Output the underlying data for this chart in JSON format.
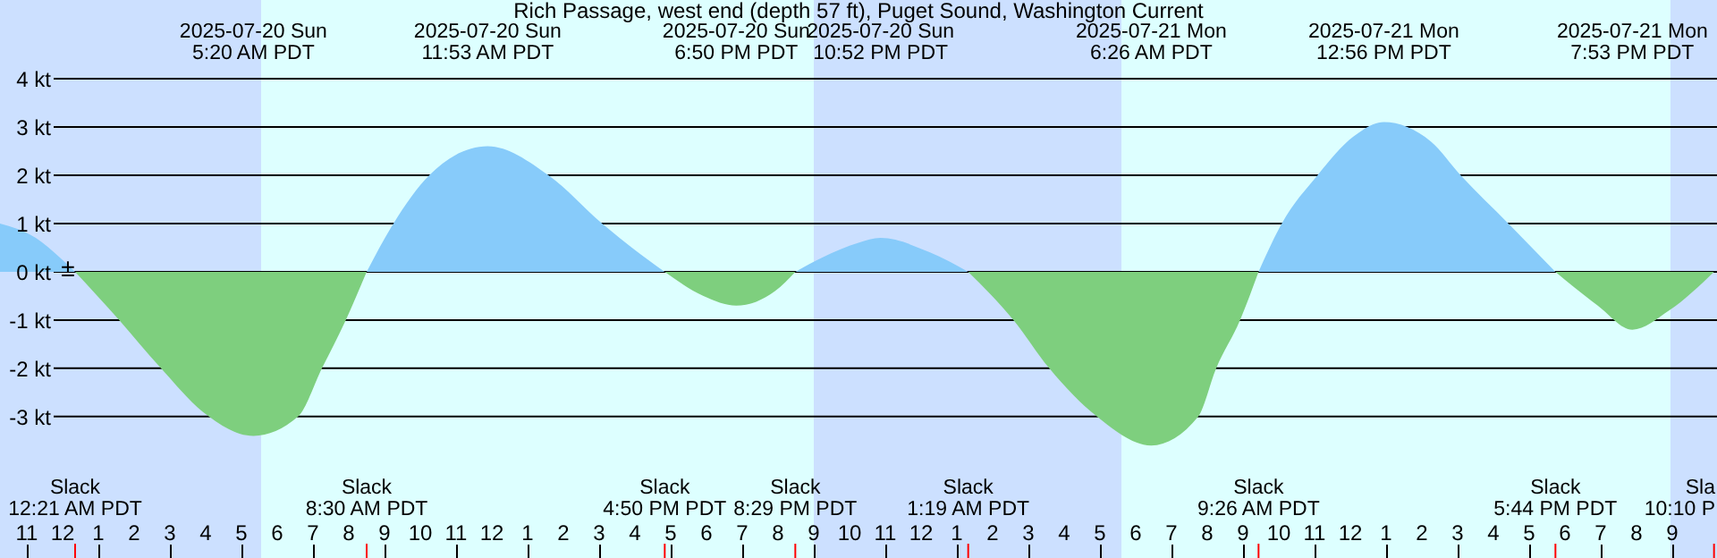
{
  "chart_data": {
    "type": "area",
    "title": "Rich Passage, west end (depth 57 ft), Puget Sound, Washington Current",
    "x": [
      "2025-07-19T22:15",
      "2025-07-19T23:15",
      "2025-07-19T23:55",
      "2025-07-20T00:21",
      "2025-07-20T01:35",
      "2025-07-20T02:45",
      "2025-07-20T03:55",
      "2025-07-20T05:20",
      "2025-07-20T06:35",
      "2025-07-20T07:15",
      "2025-07-20T07:55",
      "2025-07-20T08:30",
      "2025-07-20T09:15",
      "2025-07-20T10:15",
      "2025-07-20T11:53",
      "2025-07-20T13:35",
      "2025-07-20T15:05",
      "2025-07-20T15:55",
      "2025-07-20T16:50",
      "2025-07-20T17:55",
      "2025-07-20T18:50",
      "2025-07-20T19:55",
      "2025-07-20T20:29",
      "2025-07-20T21:15",
      "2025-07-20T22:15",
      "2025-07-20T22:52",
      "2025-07-21T00:15",
      "2025-07-21T01:19",
      "2025-07-21T02:35",
      "2025-07-21T03:35",
      "2025-07-21T04:55",
      "2025-07-21T06:26",
      "2025-07-21T07:45",
      "2025-07-21T08:15",
      "2025-07-21T08:55",
      "2025-07-21T09:26",
      "2025-07-21T10:05",
      "2025-07-21T11:05",
      "2025-07-21T12:05",
      "2025-07-21T12:56",
      "2025-07-21T14:15",
      "2025-07-21T15:05",
      "2025-07-21T16:25",
      "2025-07-21T17:44",
      "2025-07-21T18:55",
      "2025-07-21T19:53",
      "2025-07-21T20:55",
      "2025-07-21T22:10"
    ],
    "series": [
      {
        "color": "#87cbfa",
        "values": [
          1.0,
          0.7,
          0.3,
          0,
          null,
          null,
          null,
          null,
          null,
          null,
          null,
          0,
          1.0,
          2.0,
          2.6,
          2.0,
          1.0,
          0.5,
          0,
          null,
          null,
          null,
          0,
          0.3,
          0.6,
          0.7,
          0.4,
          0,
          null,
          null,
          null,
          null,
          null,
          null,
          null,
          0,
          1.0,
          2.0,
          2.8,
          3.1,
          2.7,
          2.0,
          1.0,
          0,
          null,
          null,
          null,
          null
        ]
      },
      {
        "color": "#7ecf7e",
        "values": [
          null,
          null,
          null,
          0,
          -1.0,
          -2.0,
          -2.9,
          -3.4,
          -3.0,
          -2.0,
          -1.0,
          0,
          null,
          null,
          null,
          null,
          null,
          null,
          0,
          -0.5,
          -0.7,
          -0.4,
          0,
          null,
          null,
          null,
          null,
          0,
          -1.0,
          -2.0,
          -3.0,
          -3.6,
          -3.0,
          -2.0,
          -1.0,
          0,
          null,
          null,
          null,
          null,
          null,
          null,
          null,
          0,
          -0.7,
          -1.2,
          -0.8,
          0
        ]
      }
    ],
    "xlim": [
      "2025-07-19T22:15",
      "2025-07-21T22:15"
    ],
    "xticks": [
      {
        "value": "2025-07-19T23:00",
        "label": "11"
      },
      {
        "value": "2025-07-20T00:00",
        "label": "12"
      },
      {
        "value": "2025-07-20T01:00",
        "label": "1"
      },
      {
        "value": "2025-07-20T02:00",
        "label": "2"
      },
      {
        "value": "2025-07-20T03:00",
        "label": "3"
      },
      {
        "value": "2025-07-20T04:00",
        "label": "4"
      },
      {
        "value": "2025-07-20T05:00",
        "label": "5"
      },
      {
        "value": "2025-07-20T06:00",
        "label": "6"
      },
      {
        "value": "2025-07-20T07:00",
        "label": "7"
      },
      {
        "value": "2025-07-20T08:00",
        "label": "8"
      },
      {
        "value": "2025-07-20T09:00",
        "label": "9"
      },
      {
        "value": "2025-07-20T10:00",
        "label": "10"
      },
      {
        "value": "2025-07-20T11:00",
        "label": "11"
      },
      {
        "value": "2025-07-20T12:00",
        "label": "12"
      },
      {
        "value": "2025-07-20T13:00",
        "label": "1"
      },
      {
        "value": "2025-07-20T14:00",
        "label": "2"
      },
      {
        "value": "2025-07-20T15:00",
        "label": "3"
      },
      {
        "value": "2025-07-20T16:00",
        "label": "4"
      },
      {
        "value": "2025-07-20T17:00",
        "label": "5"
      },
      {
        "value": "2025-07-20T18:00",
        "label": "6"
      },
      {
        "value": "2025-07-20T19:00",
        "label": "7"
      },
      {
        "value": "2025-07-20T20:00",
        "label": "8"
      },
      {
        "value": "2025-07-20T21:00",
        "label": "9"
      },
      {
        "value": "2025-07-20T22:00",
        "label": "10"
      },
      {
        "value": "2025-07-20T23:00",
        "label": "11"
      },
      {
        "value": "2025-07-21T00:00",
        "label": "12"
      },
      {
        "value": "2025-07-21T01:00",
        "label": "1"
      },
      {
        "value": "2025-07-21T02:00",
        "label": "2"
      },
      {
        "value": "2025-07-21T03:00",
        "label": "3"
      },
      {
        "value": "2025-07-21T04:00",
        "label": "4"
      },
      {
        "value": "2025-07-21T05:00",
        "label": "5"
      },
      {
        "value": "2025-07-21T06:00",
        "label": "6"
      },
      {
        "value": "2025-07-21T07:00",
        "label": "7"
      },
      {
        "value": "2025-07-21T08:00",
        "label": "8"
      },
      {
        "value": "2025-07-21T09:00",
        "label": "9"
      },
      {
        "value": "2025-07-21T10:00",
        "label": "10"
      },
      {
        "value": "2025-07-21T11:00",
        "label": "11"
      },
      {
        "value": "2025-07-21T12:00",
        "label": "12"
      },
      {
        "value": "2025-07-21T13:00",
        "label": "1"
      },
      {
        "value": "2025-07-21T14:00",
        "label": "2"
      },
      {
        "value": "2025-07-21T15:00",
        "label": "3"
      },
      {
        "value": "2025-07-21T16:00",
        "label": "4"
      },
      {
        "value": "2025-07-21T17:00",
        "label": "5"
      },
      {
        "value": "2025-07-21T18:00",
        "label": "6"
      },
      {
        "value": "2025-07-21T19:00",
        "label": "7"
      },
      {
        "value": "2025-07-21T20:00",
        "label": "8"
      },
      {
        "value": "2025-07-21T21:00",
        "label": "9"
      }
    ],
    "ylim": [
      -5.93,
      5.63
    ],
    "yticks": [
      {
        "value": -3,
        "label": "-3 kt"
      },
      {
        "value": -2,
        "label": "-2 kt"
      },
      {
        "value": -1,
        "label": "-1 kt"
      },
      {
        "value": 0,
        "label": "0 kt"
      },
      {
        "value": 1,
        "label": "1 kt"
      },
      {
        "value": 2,
        "label": "2 kt"
      },
      {
        "value": 3,
        "label": "3 kt"
      },
      {
        "value": 4,
        "label": "4 kt"
      }
    ],
    "grid": "y",
    "bands": [
      {
        "axis": "x",
        "from": "2025-07-19T22:15",
        "to": "2025-07-20T05:33",
        "color": "#cce0ff"
      },
      {
        "axis": "x",
        "from": "2025-07-20T21:00",
        "to": "2025-07-21T05:36",
        "color": "#cce0ff"
      },
      {
        "axis": "x",
        "from": "2025-07-21T20:57",
        "to": "2025-07-21T22:15",
        "color": "#cce0ff"
      }
    ],
    "annotations": [
      "2025-07-20 Sun\n5:20 AM PDT",
      "2025-07-20 Sun\n11:53 AM PDT",
      "2025-07-20 Sun\n6:50 PM PDT",
      "2025-07-20 Sun\n10:52 PM PDT",
      "2025-07-21 Mon\n6:26 AM PDT",
      "2025-07-21 Mon\n12:56 PM PDT",
      "2025-07-21 Mon\n7:53 PM PDT",
      "Slack\n12:21 AM PDT",
      "Slack\n8:30 AM PDT",
      "Slack\n4:50 PM PDT",
      "Slack\n8:29 PM PDT",
      "Slack\n1:19 AM PDT",
      "Slack\n9:26 AM PDT",
      "Slack\n5:44 PM PDT",
      "Sla\n10:10 P",
      {
        "text": "±",
        "x": "2025-07-20T00:09",
        "y": 0.05
      }
    ]
  }
}
